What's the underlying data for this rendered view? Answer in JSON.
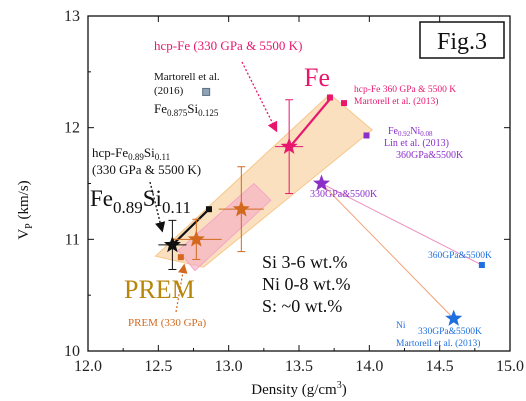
{
  "chart_data": {
    "type": "scatter",
    "figure_label": "Fig.3",
    "xlabel": {
      "main": "Density (g/cm",
      "sup": "3",
      "tail": ")"
    },
    "ylabel": {
      "main": "V",
      "sub": "P",
      "tail": " (km/s)"
    },
    "xlim": [
      12.0,
      15.0
    ],
    "ylim": [
      10.0,
      13.0
    ],
    "x_ticks": [
      "12.0",
      "12.5",
      "13.0",
      "13.5",
      "14.0",
      "14.5",
      "15.0"
    ],
    "y_ticks": [
      "10",
      "11",
      "12",
      "13"
    ],
    "grid": false,
    "colors": {
      "axis": "#111111",
      "fe": "#e8176e",
      "feni": "#8b2fc9",
      "ni": "#1f6fe0",
      "prem": "#b8860b",
      "prem_label": "#d2691e",
      "fesi": "#111111",
      "fesi_hcp": "#8fa3b8",
      "band_orange": "#f6c78a",
      "band_pink": "#f4a6c6"
    },
    "points": [
      {
        "id": "fe",
        "x": 13.82,
        "y": 12.22,
        "marker": "square",
        "color": "#e8176e"
      },
      {
        "id": "fe-top",
        "x": 13.72,
        "y": 12.27,
        "marker": "square",
        "color": "#e8176e"
      },
      {
        "id": "feni",
        "x": 13.98,
        "y": 11.93,
        "marker": "square",
        "color": "#8b2fc9"
      },
      {
        "id": "fesi-hcp",
        "x": 12.84,
        "y": 12.32,
        "marker": "square",
        "color": "#8fa3b8"
      },
      {
        "id": "ni",
        "x": 14.8,
        "y": 10.77,
        "marker": "square",
        "color": "#1f6fe0"
      },
      {
        "id": "fe-star",
        "x": 13.66,
        "y": 11.5,
        "marker": "star",
        "color": "#8b2fc9"
      },
      {
        "id": "ni-star",
        "x": 14.6,
        "y": 10.29,
        "marker": "star",
        "color": "#1f6fe0"
      },
      {
        "id": "fe330-star",
        "x": 13.43,
        "y": 11.83,
        "marker": "star",
        "color": "#e8176e",
        "xerr": 0.1,
        "yerr": 0.42
      },
      {
        "id": "prem",
        "x": 12.66,
        "y": 10.84,
        "marker": "square",
        "color": "#d2691e"
      },
      {
        "id": "mix-1",
        "x": 13.09,
        "y": 11.27,
        "marker": "star",
        "color": "#d2691e",
        "xerr": 0.16,
        "yerr": 0.38
      },
      {
        "id": "mix-2",
        "x": 12.77,
        "y": 11.0,
        "marker": "star",
        "color": "#d2691e",
        "xerr": 0.18,
        "yerr": 0.18
      },
      {
        "id": "fesi-star",
        "x": 12.6,
        "y": 10.95,
        "marker": "star",
        "color": "#111111",
        "xerr": 0.1,
        "yerr": 0.22
      },
      {
        "id": "fesi-end",
        "x": 12.86,
        "y": 11.27,
        "marker": "square",
        "color": "#111111"
      }
    ],
    "lines": [
      {
        "id": "fe-line",
        "color": "#e8176e",
        "points": [
          [
            13.45,
            11.85
          ],
          [
            13.73,
            12.27
          ]
        ]
      },
      {
        "id": "fesi-line",
        "color": "#111111",
        "points": [
          [
            12.6,
            10.95
          ],
          [
            12.86,
            11.27
          ]
        ]
      },
      {
        "id": "feni-line",
        "color": "#ec8fc0",
        "points": [
          [
            13.66,
            11.5
          ],
          [
            14.8,
            10.77
          ]
        ]
      },
      {
        "id": "ni-line",
        "color": "#f2a27a",
        "points": [
          [
            13.66,
            11.5
          ],
          [
            14.6,
            10.29
          ]
        ]
      }
    ],
    "bands": [
      {
        "id": "band-orange",
        "color": "#f6c78a",
        "points": [
          [
            12.48,
            10.85
          ],
          [
            12.82,
            10.75
          ],
          [
            14.02,
            11.98
          ],
          [
            13.72,
            12.3
          ]
        ]
      },
      {
        "id": "band-pink",
        "color": "#f4a6c6",
        "points": [
          [
            12.64,
            10.9
          ],
          [
            12.76,
            10.72
          ],
          [
            13.3,
            11.35
          ],
          [
            13.18,
            11.5
          ]
        ]
      }
    ],
    "annotations": {
      "hcp_fe": {
        "text": "hcp-Fe (330 GPa & 5500 K)",
        "color": "#e8176e"
      },
      "martorell_2016": {
        "line1": "Martorell et al.",
        "line2": "(2016)",
        "formula": [
          "Fe",
          "0.875",
          "Si",
          "0.125"
        ],
        "color": "#111111"
      },
      "fe_label": {
        "text": "Fe",
        "color": "#e8176e"
      },
      "fe_360": {
        "line1": "hcp-Fe 360 GPa & 5500 K",
        "line2": "Martorell et al. (2013)",
        "color": "#e8176e"
      },
      "feni_label": {
        "formula": [
          "Fe",
          "0.92",
          "Ni",
          "0.08"
        ],
        "line2": "Lin et al. (2013)",
        "line3": "360GPa&5500K",
        "color": "#8b2fc9"
      },
      "hcp_fesi": {
        "formula": [
          "hcp-Fe",
          "0.89",
          "Si",
          "0.11"
        ],
        "line2": "(330 GPa & 5500 K)",
        "color": "#111111"
      },
      "fesi_big": {
        "formula": [
          "Fe",
          "0.89",
          "Si",
          "0.11"
        ],
        "color": "#111111"
      },
      "star_330": {
        "text": "330GPa&5500K",
        "color": "#8b2fc9"
      },
      "composition": {
        "lines": [
          "Si 3-6 wt.%",
          "Ni 0-8 wt.%",
          "S: ~0 wt.%"
        ],
        "color": "#111111"
      },
      "ni_360": {
        "text": "360GPa&5500K",
        "color": "#1f6fe0"
      },
      "prem_big": {
        "text": "PREM",
        "color": "#b8860b"
      },
      "prem_330": {
        "text": "PREM (330 GPa)",
        "color": "#d2691e"
      },
      "ni_label": {
        "line1": "Ni",
        "line2": "330GPa&5500K",
        "line3": "Martorell et al. (2013)",
        "color": "#1f6fe0"
      }
    }
  }
}
